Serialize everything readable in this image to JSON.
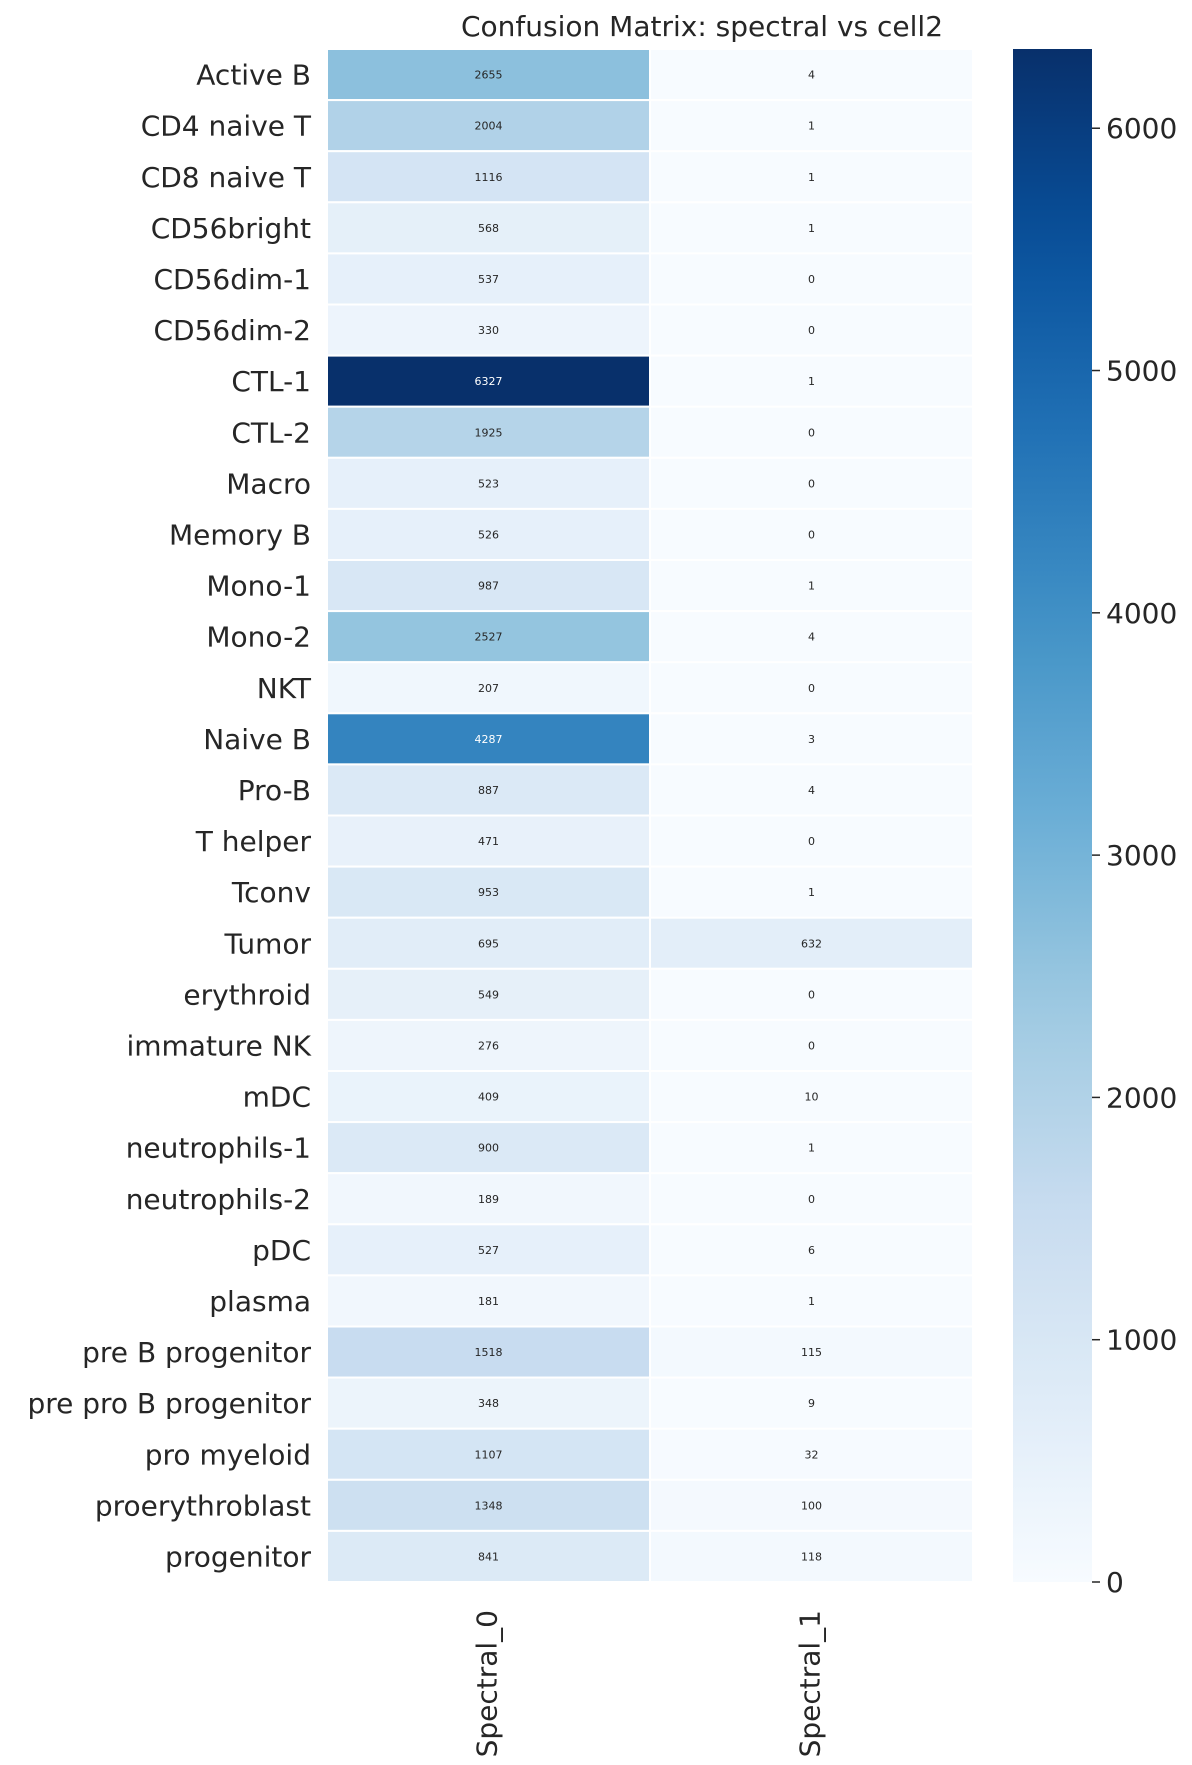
{
  "chart_data": {
    "type": "heatmap",
    "title": "Confusion Matrix: spectral vs cell2",
    "rows": [
      "Active B",
      "CD4 naive T",
      "CD8 naive T",
      "CD56bright",
      "CD56dim-1",
      "CD56dim-2",
      "CTL-1",
      "CTL-2",
      "Macro",
      "Memory B",
      "Mono-1",
      "Mono-2",
      "NKT",
      "Naive B",
      "Pro-B",
      "T helper",
      "Tconv",
      "Tumor",
      "erythroid",
      "immature NK",
      "mDC",
      "neutrophils-1",
      "neutrophils-2",
      "pDC",
      "plasma",
      "pre B progenitor",
      "pre pro B progenitor",
      "pro myeloid",
      "proerythroblast",
      "progenitor"
    ],
    "columns": [
      "Spectral_0",
      "Spectral_1"
    ],
    "values": [
      [
        2655,
        4
      ],
      [
        2004,
        1
      ],
      [
        1116,
        1
      ],
      [
        568,
        1
      ],
      [
        537,
        0
      ],
      [
        330,
        0
      ],
      [
        6327,
        1
      ],
      [
        1925,
        0
      ],
      [
        523,
        0
      ],
      [
        526,
        0
      ],
      [
        987,
        1
      ],
      [
        2527,
        4
      ],
      [
        207,
        0
      ],
      [
        4287,
        3
      ],
      [
        887,
        4
      ],
      [
        471,
        0
      ],
      [
        953,
        1
      ],
      [
        695,
        632
      ],
      [
        549,
        0
      ],
      [
        276,
        0
      ],
      [
        409,
        10
      ],
      [
        900,
        1
      ],
      [
        189,
        0
      ],
      [
        527,
        6
      ],
      [
        181,
        1
      ],
      [
        1518,
        115
      ],
      [
        348,
        9
      ],
      [
        1107,
        32
      ],
      [
        1348,
        100
      ],
      [
        841,
        118
      ]
    ],
    "colormap": "Blues",
    "vmin": 0,
    "vmax": 6327,
    "colorbar_ticks": [
      0,
      1000,
      2000,
      3000,
      4000,
      5000,
      6000
    ],
    "annotations": true
  }
}
